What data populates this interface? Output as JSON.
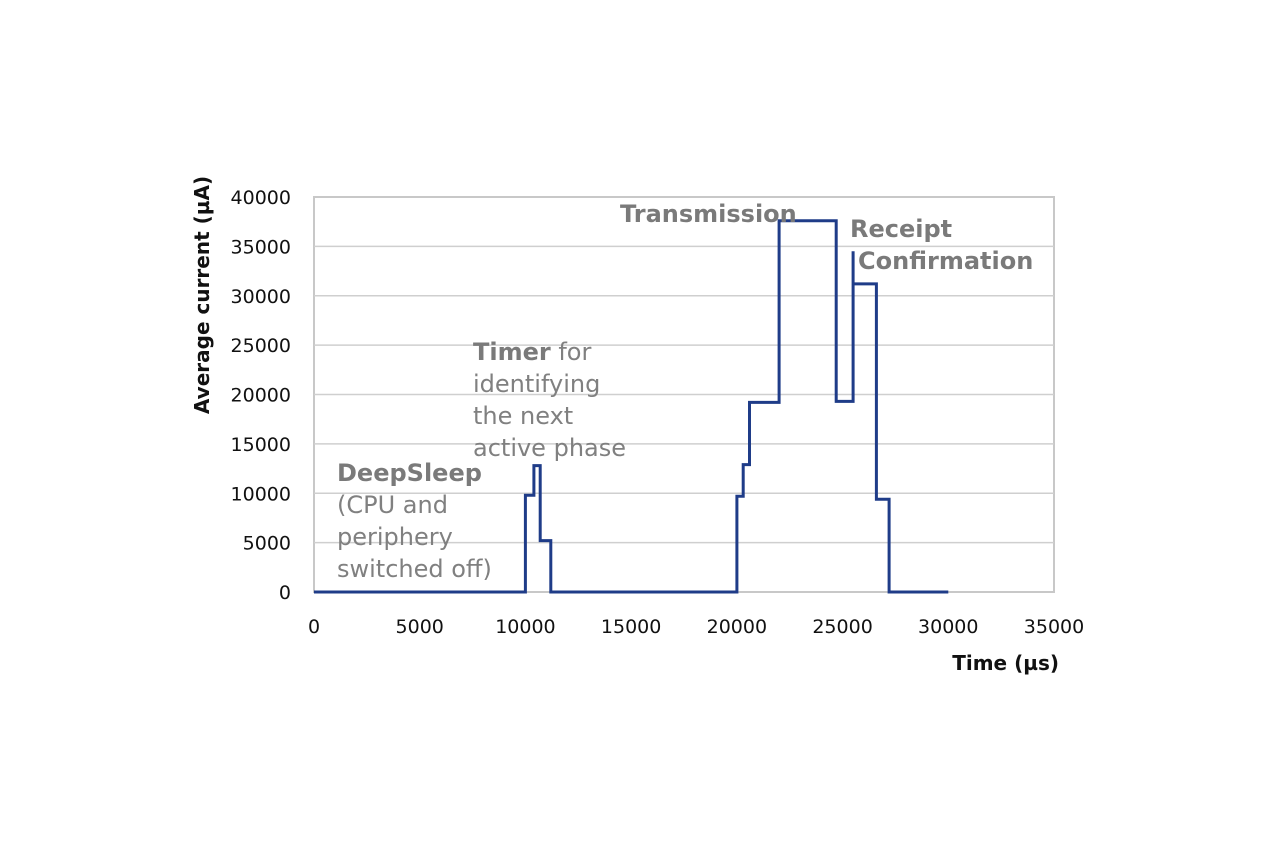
{
  "chart_data": {
    "type": "line",
    "step": true,
    "xlabel": "Time (µs)",
    "ylabel": "Average current (µA)",
    "xlim": [
      0,
      35000
    ],
    "ylim": [
      0,
      40000
    ],
    "xticks": [
      0,
      5000,
      10000,
      15000,
      20000,
      25000,
      30000,
      35000
    ],
    "yticks": [
      0,
      5000,
      10000,
      15000,
      20000,
      25000,
      30000,
      35000,
      40000
    ],
    "grid": {
      "horizontal": true,
      "vertical": false
    },
    "series": [
      {
        "color": "#1f3c88",
        "points": [
          [
            0,
            0
          ],
          [
            10000,
            0
          ],
          [
            10000,
            9800
          ],
          [
            10400,
            9800
          ],
          [
            10400,
            12800
          ],
          [
            10700,
            12800
          ],
          [
            10700,
            5200
          ],
          [
            11200,
            5200
          ],
          [
            11200,
            0
          ],
          [
            20000,
            0
          ],
          [
            20000,
            9700
          ],
          [
            20300,
            9700
          ],
          [
            20300,
            12900
          ],
          [
            20600,
            12900
          ],
          [
            20600,
            19200
          ],
          [
            22000,
            19200
          ],
          [
            22000,
            37600
          ],
          [
            24700,
            37600
          ],
          [
            24700,
            19300
          ],
          [
            25500,
            19300
          ],
          [
            25500,
            34500
          ],
          [
            25500,
            31200
          ],
          [
            26600,
            31200
          ],
          [
            26600,
            9400
          ],
          [
            27200,
            9400
          ],
          [
            27200,
            0
          ],
          [
            30000,
            0
          ]
        ]
      }
    ],
    "annotations": [
      {
        "bold": "DeepSleep",
        "rest": "",
        "lines": [
          "(CPU and",
          "periphery",
          "switched off)"
        ]
      },
      {
        "bold": "Timer",
        "rest": " for",
        "lines": [
          "identifying",
          "the next",
          "active phase"
        ]
      },
      {
        "bold": "Transmission",
        "rest": "",
        "lines": []
      },
      {
        "bold": "Receipt",
        "rest": "",
        "lines": [
          "Confirmation"
        ]
      }
    ]
  }
}
